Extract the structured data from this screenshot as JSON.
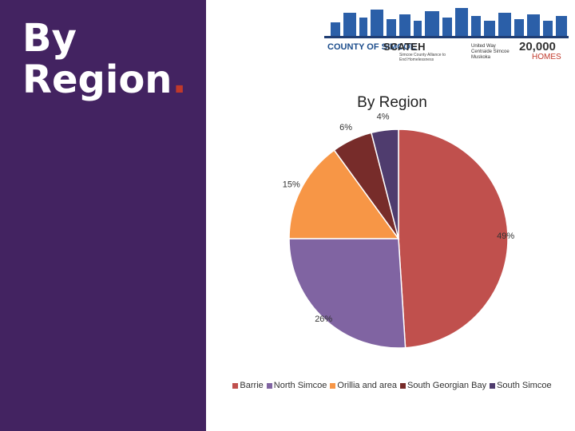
{
  "slide": {
    "title_line1": "By",
    "title_line2": "Region",
    "title_dot": ".",
    "accent_color": "#432361"
  },
  "banner": {
    "logos": {
      "county": "COUNTY OF SIMCOE",
      "scateh": "SCATEH",
      "scateh_sub": "Simcoe County Alliance to End Homelessness",
      "united_way": "United Way Centraide Simcoe Muskoka",
      "homes_top": "20,000",
      "homes_bottom": "HOMES"
    }
  },
  "chart_data": {
    "type": "pie",
    "title": "By Region",
    "categories": [
      "Barrie",
      "North Simcoe",
      "Orillia and area",
      "South Georgian Bay",
      "South Simcoe"
    ],
    "values": [
      49,
      26,
      15,
      6,
      4
    ],
    "labels": [
      "49%",
      "26%",
      "15%",
      "6%",
      "4%"
    ],
    "colors": [
      "#c0504d",
      "#8064a2",
      "#f79646",
      "#772c2a",
      "#4f3c6e"
    ],
    "legend_position": "bottom"
  }
}
